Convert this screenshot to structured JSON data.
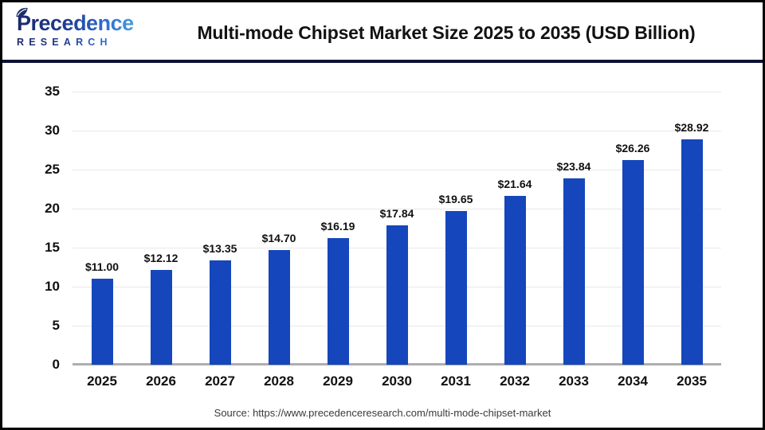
{
  "header": {
    "logo": {
      "line1": "Precedence",
      "line2": "RESEARCH"
    },
    "title": "Multi-mode Chipset Market Size 2025 to 2035 (USD Billion)"
  },
  "chart_data": {
    "type": "bar",
    "title": "Multi-mode Chipset Market Size 2025 to 2035 (USD Billion)",
    "unit": "USD Billion",
    "categories": [
      "2025",
      "2026",
      "2027",
      "2028",
      "2029",
      "2030",
      "2031",
      "2032",
      "2033",
      "2034",
      "2035"
    ],
    "values": [
      11.0,
      12.12,
      13.35,
      14.7,
      16.19,
      17.84,
      19.65,
      21.64,
      23.84,
      26.26,
      28.92
    ],
    "labels": [
      "$11.00",
      "$12.12",
      "$13.35",
      "$14.70",
      "$16.19",
      "$17.84",
      "$19.65",
      "$21.64",
      "$23.84",
      "$26.26",
      "$28.92"
    ],
    "ylim": [
      0,
      35
    ],
    "yticks": [
      0,
      5,
      10,
      15,
      20,
      25,
      30,
      35
    ],
    "grid": true,
    "legend": "none"
  },
  "colors": {
    "bar": "#1546BC",
    "gridline": "#e8e8e8",
    "baseline": "#aeaeae",
    "divider": "#0d1237",
    "frame": "#050505",
    "text": "#111111",
    "source_text": "#3a3a3a",
    "logo_dark": "#1b2a6b",
    "logo_light": "#47a0e0"
  },
  "footer": {
    "source": "Source: https://www.precedenceresearch.com/multi-mode-chipset-market"
  }
}
